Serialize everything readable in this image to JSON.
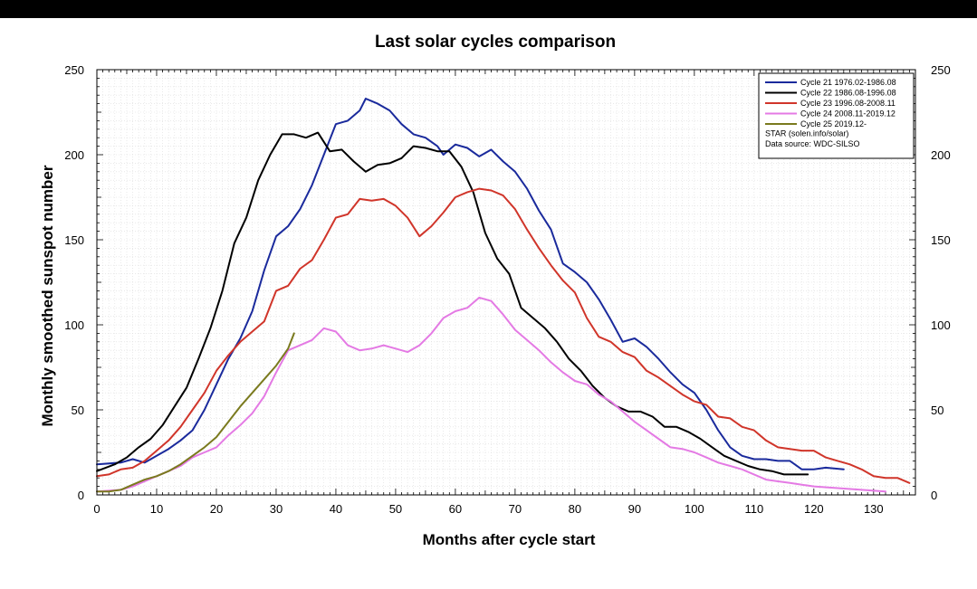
{
  "chart_data": {
    "type": "line",
    "title": "Last solar cycles comparison",
    "xlabel": "Months after cycle start",
    "ylabel": "Monthly smoothed sunspot number",
    "xlim": [
      0,
      137
    ],
    "ylim": [
      0,
      250
    ],
    "x_ticks": [
      0,
      10,
      20,
      30,
      40,
      50,
      60,
      70,
      80,
      90,
      100,
      110,
      120,
      130
    ],
    "y_ticks": [
      0,
      50,
      100,
      150,
      200,
      250
    ],
    "grid": true,
    "legend_position": "top-right",
    "legend_notes": [
      "STAR (solen.info/solar)",
      "Data source: WDC-SILSO"
    ],
    "series": [
      {
        "name": "Cycle 21 1976.02-1986.08",
        "color": "#1a2a9c",
        "points": [
          [
            0,
            18
          ],
          [
            4,
            19
          ],
          [
            6,
            21
          ],
          [
            8,
            19
          ],
          [
            10,
            23
          ],
          [
            12,
            27
          ],
          [
            14,
            32
          ],
          [
            16,
            38
          ],
          [
            18,
            50
          ],
          [
            20,
            65
          ],
          [
            22,
            80
          ],
          [
            24,
            92
          ],
          [
            26,
            108
          ],
          [
            28,
            132
          ],
          [
            30,
            152
          ],
          [
            32,
            158
          ],
          [
            34,
            168
          ],
          [
            36,
            182
          ],
          [
            38,
            200
          ],
          [
            40,
            218
          ],
          [
            42,
            220
          ],
          [
            44,
            226
          ],
          [
            45,
            233
          ],
          [
            47,
            230
          ],
          [
            49,
            226
          ],
          [
            51,
            218
          ],
          [
            53,
            212
          ],
          [
            55,
            210
          ],
          [
            57,
            205
          ],
          [
            58,
            200
          ],
          [
            60,
            206
          ],
          [
            62,
            204
          ],
          [
            64,
            199
          ],
          [
            66,
            203
          ],
          [
            68,
            196
          ],
          [
            70,
            190
          ],
          [
            72,
            180
          ],
          [
            74,
            167
          ],
          [
            76,
            156
          ],
          [
            78,
            136
          ],
          [
            80,
            131
          ],
          [
            82,
            125
          ],
          [
            84,
            115
          ],
          [
            86,
            103
          ],
          [
            88,
            90
          ],
          [
            90,
            92
          ],
          [
            92,
            87
          ],
          [
            94,
            80
          ],
          [
            96,
            72
          ],
          [
            98,
            65
          ],
          [
            100,
            60
          ],
          [
            102,
            50
          ],
          [
            104,
            38
          ],
          [
            106,
            28
          ],
          [
            108,
            23
          ],
          [
            110,
            21
          ],
          [
            112,
            21
          ],
          [
            114,
            20
          ],
          [
            116,
            20
          ],
          [
            118,
            15
          ],
          [
            120,
            15
          ],
          [
            122,
            16
          ],
          [
            125,
            15
          ]
        ]
      },
      {
        "name": "Cycle 22 1986.08-1996.08",
        "color": "#000000",
        "points": [
          [
            0,
            14
          ],
          [
            3,
            18
          ],
          [
            5,
            22
          ],
          [
            7,
            28
          ],
          [
            9,
            33
          ],
          [
            11,
            41
          ],
          [
            13,
            52
          ],
          [
            15,
            63
          ],
          [
            17,
            80
          ],
          [
            19,
            98
          ],
          [
            21,
            120
          ],
          [
            23,
            148
          ],
          [
            25,
            163
          ],
          [
            27,
            185
          ],
          [
            29,
            200
          ],
          [
            31,
            212
          ],
          [
            33,
            212
          ],
          [
            35,
            210
          ],
          [
            37,
            213
          ],
          [
            39,
            202
          ],
          [
            41,
            203
          ],
          [
            43,
            196
          ],
          [
            45,
            190
          ],
          [
            47,
            194
          ],
          [
            49,
            195
          ],
          [
            51,
            198
          ],
          [
            53,
            205
          ],
          [
            55,
            204
          ],
          [
            57,
            202
          ],
          [
            59,
            202
          ],
          [
            61,
            193
          ],
          [
            63,
            178
          ],
          [
            65,
            154
          ],
          [
            67,
            139
          ],
          [
            69,
            130
          ],
          [
            71,
            110
          ],
          [
            73,
            104
          ],
          [
            75,
            98
          ],
          [
            77,
            90
          ],
          [
            79,
            80
          ],
          [
            81,
            73
          ],
          [
            83,
            64
          ],
          [
            85,
            57
          ],
          [
            87,
            52
          ],
          [
            89,
            49
          ],
          [
            91,
            49
          ],
          [
            93,
            46
          ],
          [
            95,
            40
          ],
          [
            97,
            40
          ],
          [
            99,
            37
          ],
          [
            101,
            33
          ],
          [
            103,
            28
          ],
          [
            105,
            23
          ],
          [
            107,
            20
          ],
          [
            109,
            17
          ],
          [
            111,
            15
          ],
          [
            113,
            14
          ],
          [
            115,
            12
          ],
          [
            119,
            12
          ]
        ]
      },
      {
        "name": "Cycle 23 1996.08-2008.11",
        "color": "#d0352a",
        "points": [
          [
            0,
            11
          ],
          [
            2,
            12
          ],
          [
            4,
            15
          ],
          [
            6,
            16
          ],
          [
            8,
            20
          ],
          [
            10,
            26
          ],
          [
            12,
            32
          ],
          [
            14,
            40
          ],
          [
            16,
            50
          ],
          [
            18,
            60
          ],
          [
            20,
            73
          ],
          [
            22,
            82
          ],
          [
            24,
            90
          ],
          [
            26,
            96
          ],
          [
            28,
            102
          ],
          [
            30,
            120
          ],
          [
            32,
            123
          ],
          [
            34,
            133
          ],
          [
            36,
            138
          ],
          [
            38,
            150
          ],
          [
            40,
            163
          ],
          [
            42,
            165
          ],
          [
            44,
            174
          ],
          [
            46,
            173
          ],
          [
            48,
            174
          ],
          [
            50,
            170
          ],
          [
            52,
            163
          ],
          [
            54,
            152
          ],
          [
            56,
            158
          ],
          [
            58,
            166
          ],
          [
            60,
            175
          ],
          [
            62,
            178
          ],
          [
            64,
            180
          ],
          [
            66,
            179
          ],
          [
            68,
            176
          ],
          [
            70,
            168
          ],
          [
            72,
            156
          ],
          [
            74,
            145
          ],
          [
            76,
            135
          ],
          [
            78,
            126
          ],
          [
            80,
            119
          ],
          [
            82,
            104
          ],
          [
            84,
            93
          ],
          [
            86,
            90
          ],
          [
            88,
            84
          ],
          [
            90,
            81
          ],
          [
            92,
            73
          ],
          [
            94,
            69
          ],
          [
            96,
            64
          ],
          [
            98,
            59
          ],
          [
            100,
            55
          ],
          [
            102,
            53
          ],
          [
            104,
            46
          ],
          [
            106,
            45
          ],
          [
            108,
            40
          ],
          [
            110,
            38
          ],
          [
            112,
            32
          ],
          [
            114,
            28
          ],
          [
            116,
            27
          ],
          [
            118,
            26
          ],
          [
            120,
            26
          ],
          [
            122,
            22
          ],
          [
            124,
            20
          ],
          [
            126,
            18
          ],
          [
            128,
            15
          ],
          [
            130,
            11
          ],
          [
            132,
            10
          ],
          [
            134,
            10
          ],
          [
            136,
            7
          ]
        ]
      },
      {
        "name": "Cycle 24 2008.11-2019.12",
        "color": "#e47ae4",
        "points": [
          [
            0,
            2
          ],
          [
            4,
            3
          ],
          [
            6,
            5
          ],
          [
            8,
            8
          ],
          [
            10,
            11
          ],
          [
            12,
            14
          ],
          [
            14,
            17
          ],
          [
            16,
            22
          ],
          [
            18,
            25
          ],
          [
            20,
            28
          ],
          [
            22,
            35
          ],
          [
            24,
            41
          ],
          [
            26,
            48
          ],
          [
            28,
            58
          ],
          [
            30,
            72
          ],
          [
            32,
            85
          ],
          [
            34,
            88
          ],
          [
            36,
            91
          ],
          [
            38,
            98
          ],
          [
            40,
            96
          ],
          [
            42,
            88
          ],
          [
            44,
            85
          ],
          [
            46,
            86
          ],
          [
            48,
            88
          ],
          [
            50,
            86
          ],
          [
            52,
            84
          ],
          [
            54,
            88
          ],
          [
            56,
            95
          ],
          [
            58,
            104
          ],
          [
            60,
            108
          ],
          [
            62,
            110
          ],
          [
            64,
            116
          ],
          [
            66,
            114
          ],
          [
            68,
            106
          ],
          [
            70,
            97
          ],
          [
            72,
            91
          ],
          [
            74,
            85
          ],
          [
            76,
            78
          ],
          [
            78,
            72
          ],
          [
            80,
            67
          ],
          [
            82,
            65
          ],
          [
            84,
            59
          ],
          [
            86,
            55
          ],
          [
            88,
            49
          ],
          [
            90,
            43
          ],
          [
            92,
            38
          ],
          [
            94,
            33
          ],
          [
            96,
            28
          ],
          [
            98,
            27
          ],
          [
            100,
            25
          ],
          [
            102,
            22
          ],
          [
            104,
            19
          ],
          [
            106,
            17
          ],
          [
            108,
            15
          ],
          [
            110,
            12
          ],
          [
            112,
            9
          ],
          [
            114,
            8
          ],
          [
            116,
            7
          ],
          [
            118,
            6
          ],
          [
            120,
            5
          ],
          [
            124,
            4
          ],
          [
            128,
            3
          ],
          [
            132,
            2
          ]
        ]
      },
      {
        "name": "Cycle 25 2019.12-",
        "color": "#7a7a1e",
        "points": [
          [
            0,
            2
          ],
          [
            2,
            2
          ],
          [
            4,
            3
          ],
          [
            6,
            6
          ],
          [
            8,
            9
          ],
          [
            10,
            11
          ],
          [
            12,
            14
          ],
          [
            14,
            18
          ],
          [
            16,
            23
          ],
          [
            18,
            28
          ],
          [
            20,
            34
          ],
          [
            22,
            43
          ],
          [
            24,
            52
          ],
          [
            26,
            60
          ],
          [
            28,
            68
          ],
          [
            30,
            76
          ],
          [
            32,
            86
          ],
          [
            33,
            95
          ]
        ]
      }
    ]
  }
}
